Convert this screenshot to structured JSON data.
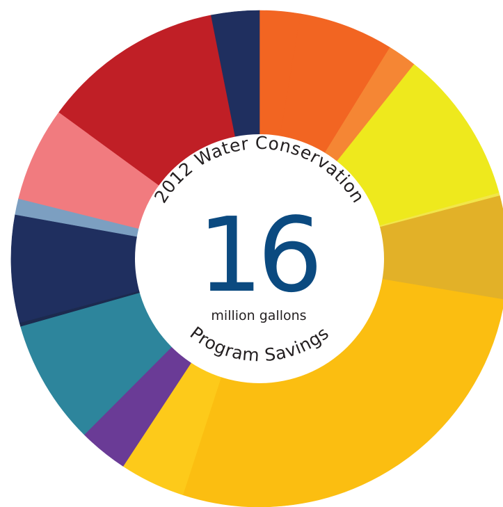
{
  "chart_data": {
    "type": "pie",
    "style": "donut",
    "title_top": "2012 Water Conservation",
    "title_bottom": "Program Savings",
    "center_value": "16",
    "center_unit": "million gallons",
    "slices": [
      {
        "value": 2.8,
        "color": "#f26522"
      },
      {
        "value": 6.5,
        "color": "#f26522"
      },
      {
        "value": 2.0,
        "color": "#f58634"
      },
      {
        "value": 10.6,
        "color": "#eee91d"
      },
      {
        "value": 0.2,
        "color": "#f2e64a"
      },
      {
        "value": 7.1,
        "color": "#e2b128"
      },
      {
        "value": 28.9,
        "color": "#fbbe11"
      },
      {
        "value": 4.5,
        "color": "#fdca1a"
      },
      {
        "value": 3.4,
        "color": "#6a3b96"
      },
      {
        "value": 8.6,
        "color": "#2d859c"
      },
      {
        "value": 0.25,
        "color": "#1c2a4e"
      },
      {
        "value": 7.4,
        "color": "#1f2f5f"
      },
      {
        "value": 1.1,
        "color": "#7c9fc1"
      },
      {
        "value": 6.5,
        "color": "#f17b7f"
      },
      {
        "value": 12.5,
        "color": "#c01f26"
      },
      {
        "value": 3.3,
        "color": "#1f2f5f"
      }
    ]
  }
}
